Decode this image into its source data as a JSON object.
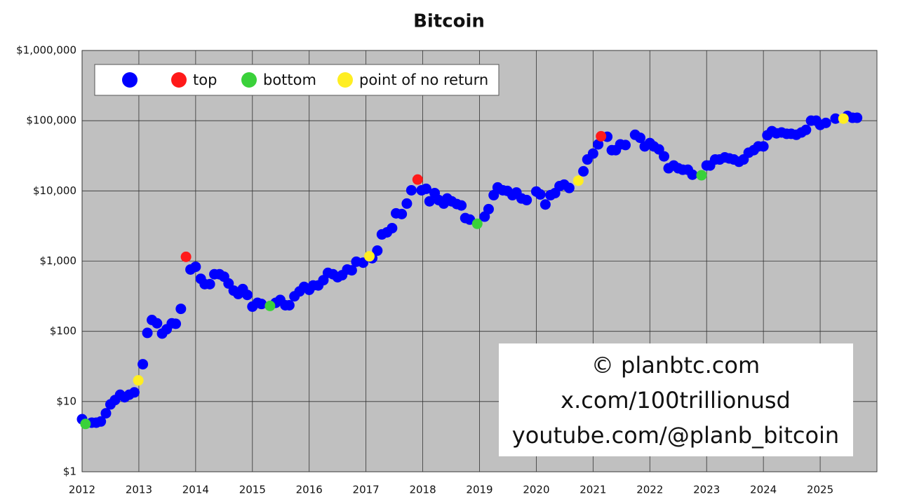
{
  "chart_data": {
    "type": "scatter",
    "title": "Bitcoin",
    "log_y": true,
    "grid": true,
    "legend": "upper left",
    "xlim": [
      2012,
      2026
    ],
    "xticks": [
      2012,
      2013,
      2014,
      2015,
      2016,
      2017,
      2018,
      2019,
      2020,
      2021,
      2022,
      2023,
      2024,
      2025
    ],
    "ylim": [
      1,
      1000000
    ],
    "yticks": [
      {
        "value": 1,
        "label": "$1"
      },
      {
        "value": 10,
        "label": "$10"
      },
      {
        "value": 100,
        "label": "$100"
      },
      {
        "value": 1000,
        "label": "$1,000"
      },
      {
        "value": 10000,
        "label": "$10,000"
      },
      {
        "value": 100000,
        "label": "$100,000"
      },
      {
        "value": 1000000,
        "label": "$1,000,000"
      }
    ],
    "series": [
      {
        "color": "#0000ff",
        "x": [
          2012.0,
          2012.17,
          2012.25,
          2012.33,
          2012.42,
          2012.5,
          2012.58,
          2012.67,
          2012.75,
          2012.83,
          2012.92,
          2013.07,
          2013.15,
          2013.23,
          2013.32,
          2013.41,
          2013.49,
          2013.58,
          2013.65,
          2013.74,
          2013.91,
          2014.0,
          2014.09,
          2014.16,
          2014.25,
          2014.33,
          2014.42,
          2014.5,
          2014.58,
          2014.67,
          2014.75,
          2014.83,
          2014.91,
          2015.0,
          2015.09,
          2015.16,
          2015.41,
          2015.49,
          2015.58,
          2015.65,
          2015.74,
          2015.83,
          2015.91,
          2016.0,
          2016.07,
          2016.16,
          2016.25,
          2016.33,
          2016.42,
          2016.5,
          2016.58,
          2016.67,
          2016.75,
          2016.83,
          2016.95,
          2017.11,
          2017.2,
          2017.28,
          2017.37,
          2017.46,
          2017.53,
          2017.63,
          2017.72,
          2017.8,
          2017.98,
          2018.06,
          2018.12,
          2018.21,
          2018.28,
          2018.37,
          2018.43,
          2018.51,
          2018.6,
          2018.68,
          2018.75,
          2018.83,
          2019.09,
          2019.16,
          2019.25,
          2019.32,
          2019.41,
          2019.49,
          2019.58,
          2019.65,
          2019.74,
          2019.83,
          2020.0,
          2020.07,
          2020.16,
          2020.25,
          2020.33,
          2020.41,
          2020.49,
          2020.58,
          2020.83,
          2020.9,
          2021.0,
          2021.09,
          2021.25,
          2021.33,
          2021.4,
          2021.48,
          2021.57,
          2021.74,
          2021.83,
          2021.91,
          2022.0,
          2022.07,
          2022.16,
          2022.25,
          2022.33,
          2022.42,
          2022.5,
          2022.58,
          2022.67,
          2022.75,
          2023.0,
          2023.06,
          2023.15,
          2023.23,
          2023.32,
          2023.4,
          2023.48,
          2023.57,
          2023.65,
          2023.74,
          2023.83,
          2023.91,
          2024.0,
          2024.07,
          2024.15,
          2024.23,
          2024.32,
          2024.41,
          2024.49,
          2024.58,
          2024.67,
          2024.75,
          2024.84,
          2024.93,
          2025.0,
          2025.1,
          2025.27,
          2025.48,
          2025.57,
          2025.65
        ],
        "values": [
          5.6,
          5.0,
          5.0,
          5.2,
          6.8,
          9.1,
          10.5,
          12.5,
          11.5,
          12.5,
          13.5,
          34,
          95,
          145,
          130,
          93,
          107,
          130,
          128,
          209,
          760,
          830,
          560,
          470,
          470,
          650,
          650,
          600,
          480,
          380,
          340,
          400,
          330,
          225,
          255,
          245,
          255,
          280,
          235,
          235,
          315,
          370,
          430,
          390,
          450,
          450,
          535,
          680,
          650,
          590,
          630,
          760,
          740,
          980,
          950,
          1100,
          1410,
          2400,
          2570,
          2950,
          4790,
          4680,
          6600,
          10200,
          10200,
          10700,
          7100,
          9300,
          7400,
          6600,
          7800,
          7100,
          6500,
          6200,
          4100,
          3900,
          4300,
          5500,
          8700,
          11200,
          10200,
          10000,
          8700,
          9500,
          7800,
          7400,
          9800,
          8900,
          6400,
          8700,
          9300,
          11700,
          12300,
          11000,
          19000,
          28000,
          34000,
          46000,
          59000,
          38000,
          38000,
          46000,
          45000,
          63000,
          57000,
          43000,
          48000,
          43000,
          39000,
          31000,
          21000,
          23000,
          21000,
          20000,
          20000,
          17000,
          23000,
          23000,
          28000,
          28000,
          30000,
          29000,
          28000,
          26000,
          28000,
          35000,
          38000,
          43000,
          43000,
          62000,
          71000,
          66000,
          68000,
          65000,
          65000,
          63000,
          68000,
          74000,
          100000,
          100000,
          87000,
          93000,
          107000,
          117000,
          110000,
          110000
        ]
      },
      {
        "name": "top",
        "color": "#ff1a1a",
        "x": [
          2013.83,
          2017.91,
          2021.14
        ],
        "values": [
          1150,
          14500,
          60000
        ]
      },
      {
        "name": "bottom",
        "color": "#3ad13a",
        "x": [
          2012.06,
          2015.31,
          2018.96,
          2022.91
        ],
        "values": [
          4.8,
          230,
          3400,
          16700
        ]
      },
      {
        "name": "point of no return",
        "color": "#ffee22",
        "x": [
          2012.99,
          2017.06,
          2020.74,
          2025.41
        ],
        "values": [
          20,
          1170,
          14000,
          107000
        ]
      }
    ],
    "annotations": [
      "© planbtc.com",
      "x.com/100trillionusd",
      "youtube.com/@planb_bitcoin"
    ]
  }
}
